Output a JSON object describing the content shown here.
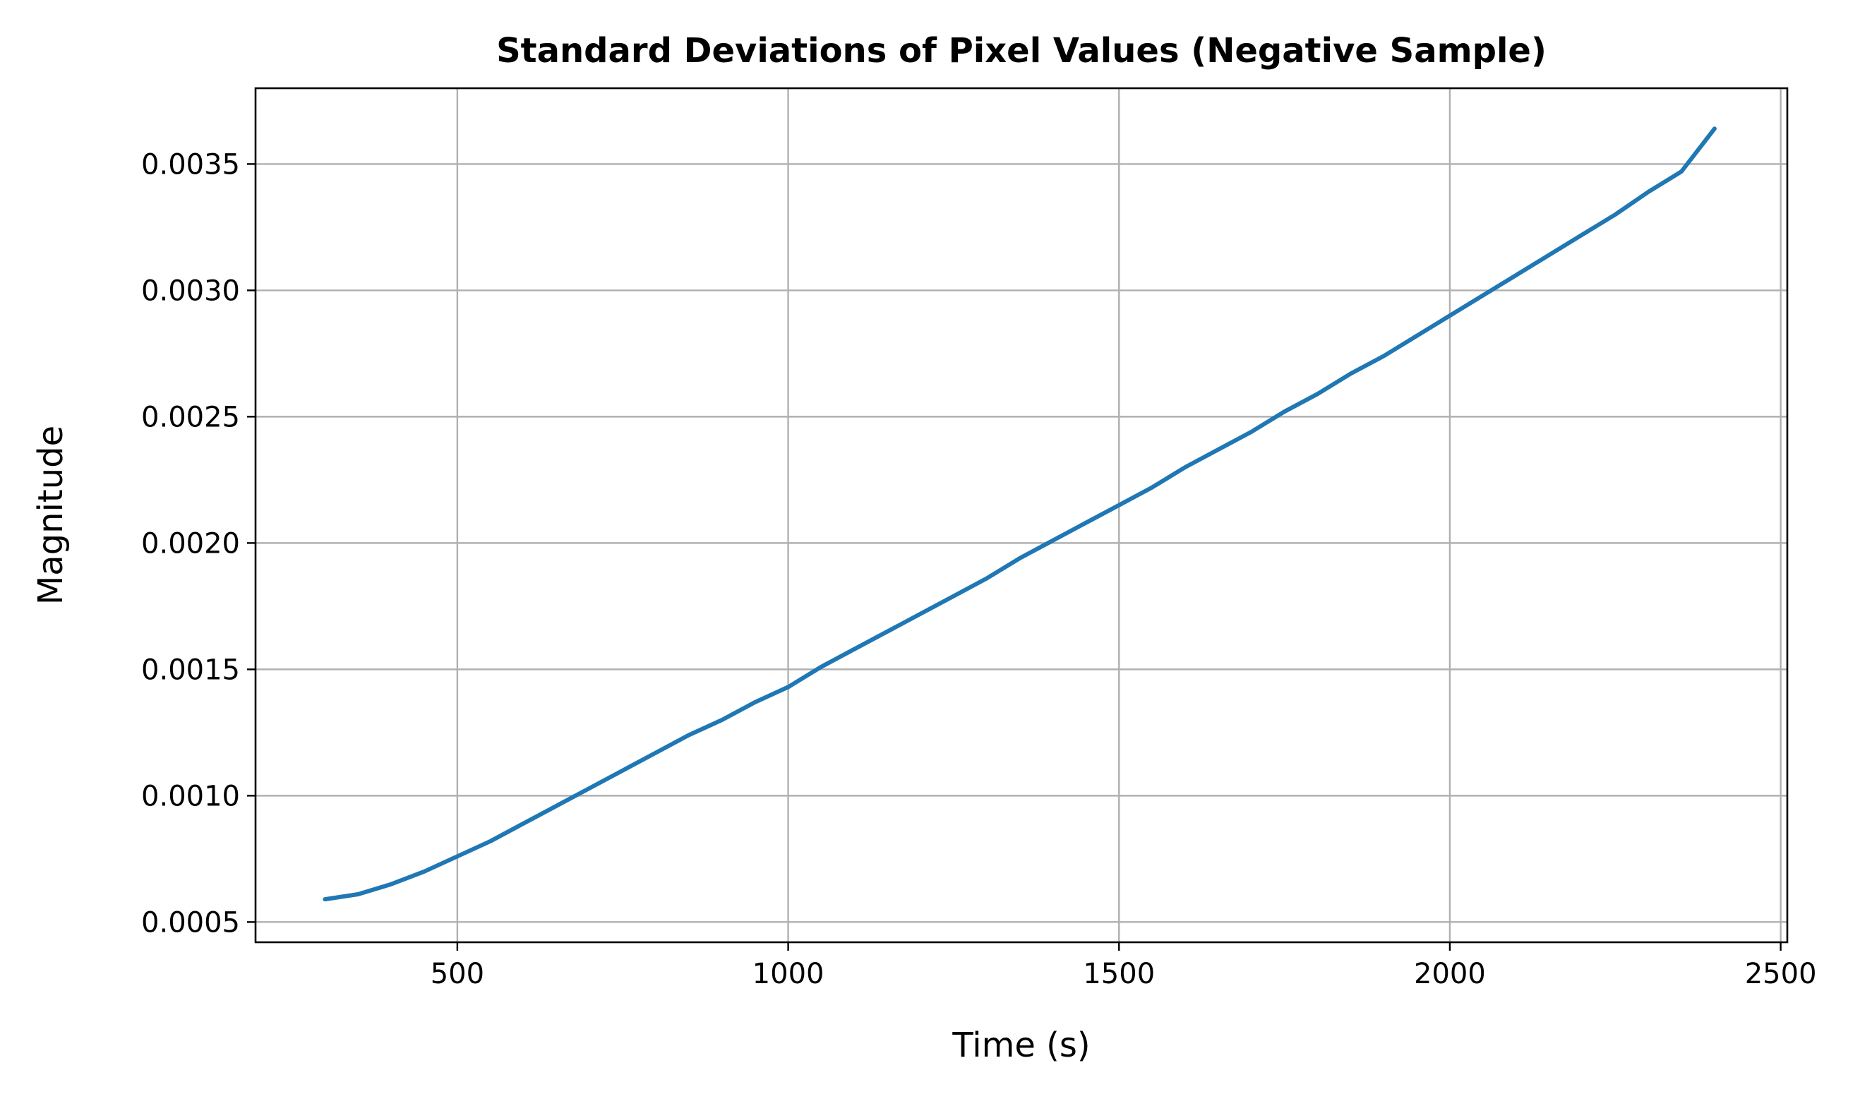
{
  "chart_data": {
    "type": "line",
    "title": "Standard Deviations of Pixel Values (Negative Sample)",
    "xlabel": "Time (s)",
    "ylabel": "Magnitude",
    "xlim": [
      195,
      2510
    ],
    "ylim": [
      0.00042,
      0.0038
    ],
    "xticks": [
      500,
      1000,
      1500,
      2000,
      2500
    ],
    "xtick_labels": [
      "500",
      "1000",
      "1500",
      "2000",
      "2500"
    ],
    "yticks": [
      0.0005,
      0.001,
      0.0015,
      0.002,
      0.0025,
      0.003,
      0.0035
    ],
    "ytick_labels": [
      "0.0005",
      "0.0010",
      "0.0015",
      "0.0020",
      "0.0025",
      "0.0030",
      "0.0035"
    ],
    "grid": true,
    "legend": "none",
    "color": "#1f77b4",
    "series": [
      {
        "x": [
          300,
          350,
          400,
          450,
          500,
          550,
          600,
          650,
          700,
          750,
          800,
          850,
          900,
          950,
          1000,
          1050,
          1100,
          1150,
          1200,
          1250,
          1300,
          1350,
          1400,
          1450,
          1500,
          1550,
          1600,
          1650,
          1700,
          1750,
          1800,
          1850,
          1900,
          1950,
          2000,
          2050,
          2100,
          2150,
          2200,
          2250,
          2300,
          2350,
          2400
        ],
        "y": [
          0.00059,
          0.00061,
          0.00065,
          0.0007,
          0.00076,
          0.00082,
          0.00089,
          0.00096,
          0.00103,
          0.0011,
          0.00117,
          0.00124,
          0.0013,
          0.00137,
          0.00143,
          0.00151,
          0.00158,
          0.00165,
          0.00172,
          0.00179,
          0.00186,
          0.00194,
          0.00201,
          0.00208,
          0.00215,
          0.00222,
          0.0023,
          0.00237,
          0.00244,
          0.00252,
          0.00259,
          0.00267,
          0.00274,
          0.00282,
          0.0029,
          0.00298,
          0.00306,
          0.00314,
          0.00322,
          0.0033,
          0.00339,
          0.00347,
          0.00364
        ]
      }
    ]
  }
}
